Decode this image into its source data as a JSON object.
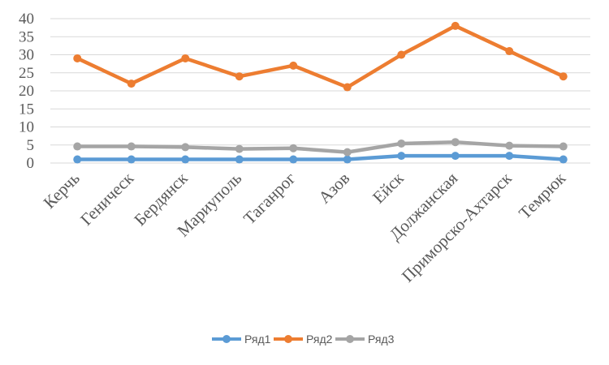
{
  "chart_data": {
    "type": "line",
    "categories": [
      "Керчь",
      "Геническ",
      "Бердянск",
      "Мариуполь",
      "Таганрог",
      "Азов",
      "Ейск",
      "Должанская",
      "Приморско-Ахтарск",
      "Темрюк"
    ],
    "series": [
      {
        "name": "Ряд1",
        "color": "#5b9bd5",
        "values": [
          1,
          1,
          1,
          1,
          1,
          1,
          2,
          2,
          2,
          1
        ]
      },
      {
        "name": "Ряд2",
        "color": "#ed7d31",
        "values": [
          29,
          22,
          29,
          24,
          27,
          21,
          30,
          38,
          31,
          24
        ]
      },
      {
        "name": "Ряд3",
        "color": "#a5a5a5",
        "values": [
          4.6,
          4.6,
          4.4,
          3.9,
          4.1,
          3.0,
          5.4,
          5.8,
          4.8,
          4.6
        ]
      }
    ],
    "ylim": [
      0,
      40
    ],
    "yticks": [
      0,
      5,
      10,
      15,
      20,
      25,
      30,
      35,
      40
    ],
    "grid": true,
    "legend": "bottom"
  }
}
